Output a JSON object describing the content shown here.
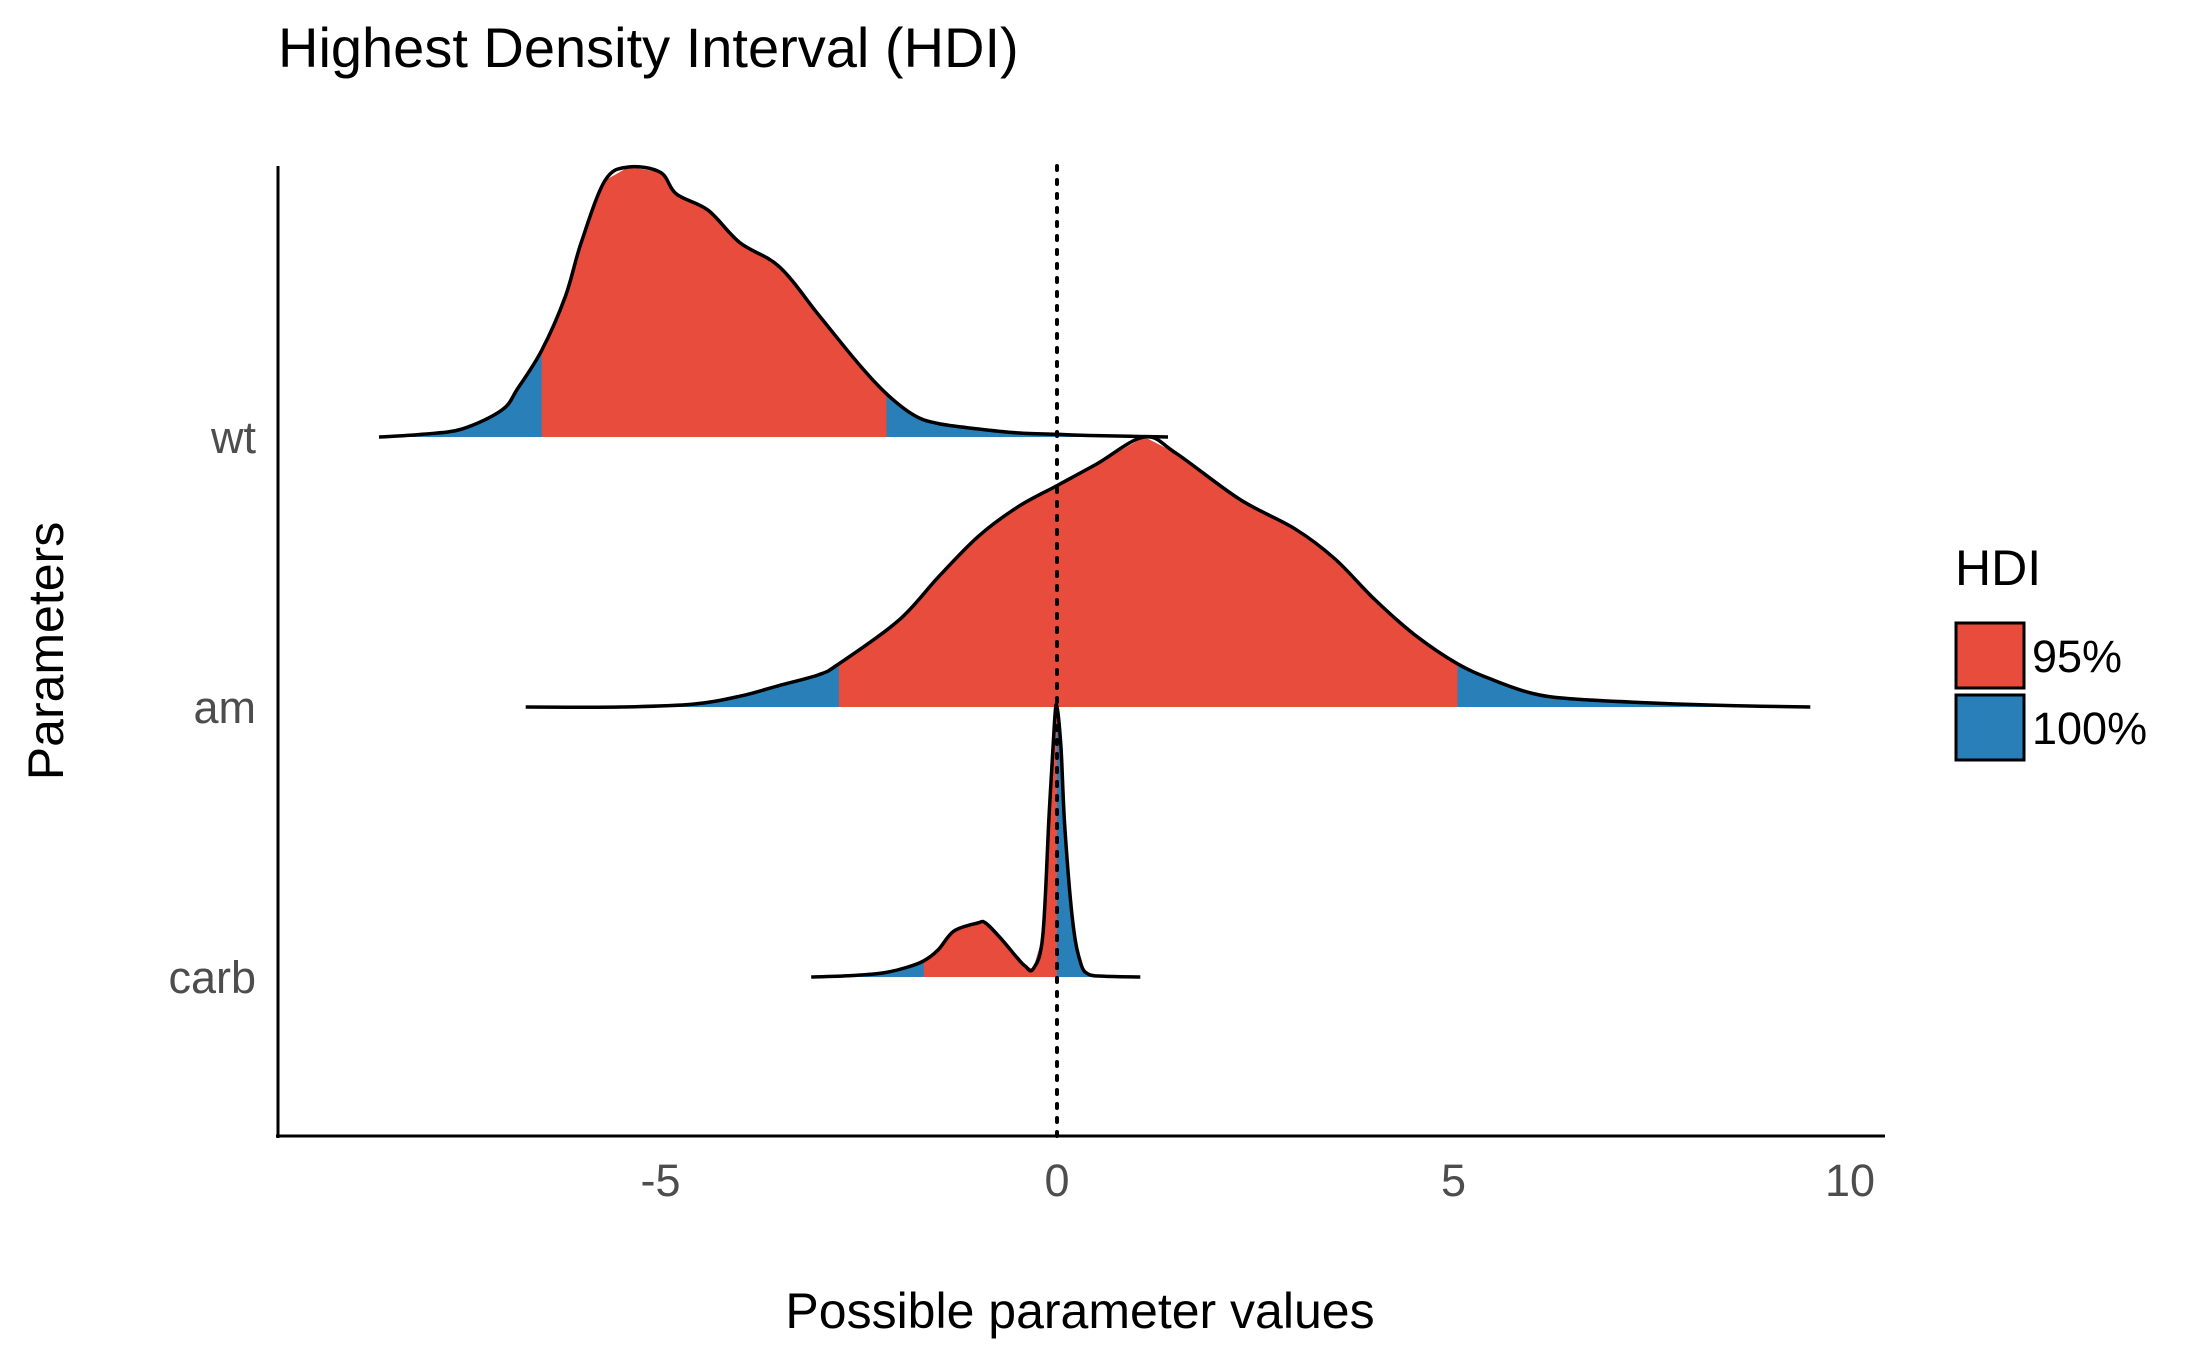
{
  "chart_data": {
    "type": "ridgeline-density",
    "title": "Highest Density Interval (HDI)",
    "xlabel": "Possible parameter values",
    "ylabel": "Parameters",
    "xlim": [
      -9.4,
      10.9
    ],
    "x_ticks": [
      -5,
      0,
      5,
      10
    ],
    "x_tick_labels": [
      "-5",
      "0",
      "5",
      "10"
    ],
    "reference_line_x": 0,
    "grid": false,
    "legend": {
      "title": "HDI",
      "placement": "right",
      "entries": [
        {
          "label": "95%",
          "color": "#E74C3C"
        },
        {
          "label": "100%",
          "color": "#2980B9"
        }
      ]
    },
    "colors": {
      "hdi95": "#E74C3C",
      "hdi100": "#2980B9",
      "outline": "#000000"
    },
    "parameters": [
      {
        "name": "wt",
        "hdi95": [
          -6.5,
          -2.15
        ],
        "density": [
          [
            -8.55,
            0.0
          ],
          [
            -8.0,
            0.01
          ],
          [
            -7.5,
            0.03
          ],
          [
            -7.0,
            0.1
          ],
          [
            -6.8,
            0.18
          ],
          [
            -6.5,
            0.32
          ],
          [
            -6.2,
            0.52
          ],
          [
            -6.0,
            0.72
          ],
          [
            -5.7,
            0.95
          ],
          [
            -5.4,
            1.0
          ],
          [
            -5.0,
            0.98
          ],
          [
            -4.8,
            0.9
          ],
          [
            -4.4,
            0.84
          ],
          [
            -4.0,
            0.72
          ],
          [
            -3.5,
            0.63
          ],
          [
            -3.0,
            0.45
          ],
          [
            -2.5,
            0.27
          ],
          [
            -2.15,
            0.16
          ],
          [
            -1.8,
            0.08
          ],
          [
            -1.5,
            0.05
          ],
          [
            -1.0,
            0.03
          ],
          [
            -0.5,
            0.015
          ],
          [
            0.0,
            0.01
          ],
          [
            0.5,
            0.005
          ],
          [
            1.4,
            0.0
          ]
        ]
      },
      {
        "name": "am",
        "hdi95": [
          -2.75,
          5.05
        ],
        "density": [
          [
            -6.7,
            0.0
          ],
          [
            -5.5,
            0.0
          ],
          [
            -4.6,
            0.01
          ],
          [
            -4.0,
            0.04
          ],
          [
            -3.5,
            0.08
          ],
          [
            -3.0,
            0.12
          ],
          [
            -2.75,
            0.16
          ],
          [
            -2.0,
            0.32
          ],
          [
            -1.5,
            0.48
          ],
          [
            -1.0,
            0.63
          ],
          [
            -0.5,
            0.74
          ],
          [
            0.0,
            0.82
          ],
          [
            0.5,
            0.9
          ],
          [
            1.1,
            1.0
          ],
          [
            1.5,
            0.94
          ],
          [
            2.3,
            0.77
          ],
          [
            3.0,
            0.66
          ],
          [
            3.5,
            0.55
          ],
          [
            4.0,
            0.4
          ],
          [
            4.5,
            0.27
          ],
          [
            5.05,
            0.16
          ],
          [
            5.5,
            0.1
          ],
          [
            6.0,
            0.05
          ],
          [
            6.5,
            0.03
          ],
          [
            7.5,
            0.015
          ],
          [
            8.5,
            0.005
          ],
          [
            9.5,
            0.0
          ]
        ]
      },
      {
        "name": "carb",
        "hdi95": [
          -1.68,
          0.0
        ],
        "density": [
          [
            -3.1,
            0.0
          ],
          [
            -2.6,
            0.005
          ],
          [
            -2.2,
            0.015
          ],
          [
            -1.9,
            0.035
          ],
          [
            -1.68,
            0.06
          ],
          [
            -1.5,
            0.1
          ],
          [
            -1.3,
            0.17
          ],
          [
            -1.0,
            0.2
          ],
          [
            -0.9,
            0.2
          ],
          [
            -0.7,
            0.14
          ],
          [
            -0.5,
            0.07
          ],
          [
            -0.4,
            0.04
          ],
          [
            -0.3,
            0.03
          ],
          [
            -0.18,
            0.15
          ],
          [
            -0.1,
            0.6
          ],
          [
            -0.03,
            0.95
          ],
          [
            0.0,
            1.0
          ],
          [
            0.05,
            0.85
          ],
          [
            0.1,
            0.55
          ],
          [
            0.2,
            0.2
          ],
          [
            0.3,
            0.05
          ],
          [
            0.4,
            0.01
          ],
          [
            0.6,
            0.003
          ],
          [
            1.05,
            0.0
          ]
        ]
      }
    ]
  }
}
